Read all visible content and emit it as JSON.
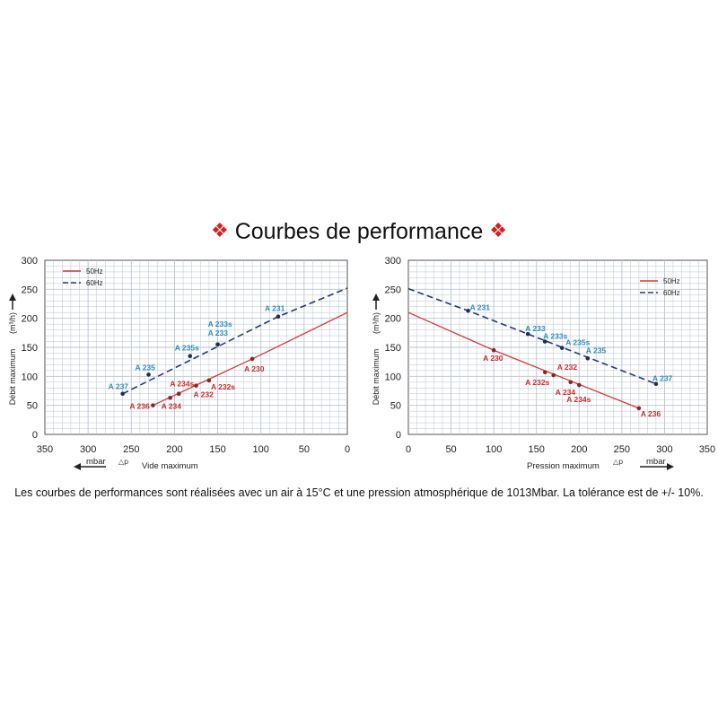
{
  "header": {
    "title": "Courbes de performance",
    "decor": "❖"
  },
  "footnote": "Les courbes de performances sont réalisées avec un air à 15°C et une pression atmosphérique de 1013Mbar. La tolérance est de +/- 10%.",
  "colors": {
    "s50": "#d43a3a",
    "s60": "#263a78",
    "lbl50": "#cc2b2b",
    "lbl60": "#2e8dbf",
    "grid": "#b8c4d4"
  },
  "chart_data": [
    {
      "type": "line",
      "title": "",
      "xlabel": "Vide maximum",
      "xunit": "mbar",
      "xsymbol": "△p",
      "ylabel": "Débit maximum",
      "yunit": "(m³/h)",
      "xlim": [
        350,
        0
      ],
      "ylim": [
        0,
        300
      ],
      "xticks": [
        350,
        300,
        250,
        200,
        150,
        100,
        50,
        0
      ],
      "yticks": [
        0,
        50,
        100,
        150,
        200,
        250,
        300
      ],
      "grid": true,
      "legend": "top-left",
      "series": [
        {
          "name": "50Hz",
          "style": "solid",
          "line": [
            [
              225,
              50
            ],
            [
              110,
              130
            ],
            [
              0,
              210
            ]
          ],
          "points": [
            {
              "label": "A 236",
              "x": 225,
              "y": 50
            },
            {
              "label": "A 234",
              "x": 205,
              "y": 63
            },
            {
              "label": "A 234s",
              "x": 195,
              "y": 70
            },
            {
              "label": "A 232",
              "x": 175,
              "y": 84
            },
            {
              "label": "A 232s",
              "x": 160,
              "y": 93
            },
            {
              "label": "A 230",
              "x": 110,
              "y": 130
            }
          ]
        },
        {
          "name": "60Hz",
          "style": "dashed",
          "line": [
            [
              260,
              70
            ],
            [
              80,
              203
            ],
            [
              0,
              252
            ]
          ],
          "points": [
            {
              "label": "A 237",
              "x": 260,
              "y": 70
            },
            {
              "label": "A 235",
              "x": 230,
              "y": 103
            },
            {
              "label": "A 235s",
              "x": 182,
              "y": 135
            },
            {
              "label": "A 233",
              "x": 150,
              "y": 155
            },
            {
              "label": "A 233s",
              "x": 150,
              "y": 155
            },
            {
              "label": "A 231",
              "x": 80,
              "y": 203
            }
          ]
        }
      ]
    },
    {
      "type": "line",
      "title": "",
      "xlabel": "Pression maximum",
      "xunit": "mbar",
      "xsymbol": "△p",
      "ylabel": "Débit maximum",
      "yunit": "(m³/h)",
      "xlim": [
        0,
        350
      ],
      "ylim": [
        0,
        300
      ],
      "xticks": [
        0,
        50,
        100,
        150,
        200,
        250,
        300,
        350
      ],
      "yticks": [
        0,
        50,
        100,
        150,
        200,
        250,
        300
      ],
      "grid": true,
      "legend": "top-right",
      "series": [
        {
          "name": "50Hz",
          "style": "solid",
          "line": [
            [
              0,
              210
            ],
            [
              100,
              145
            ],
            [
              270,
              45
            ]
          ],
          "points": [
            {
              "label": "A 230",
              "x": 100,
              "y": 145
            },
            {
              "label": "A 232s",
              "x": 160,
              "y": 107
            },
            {
              "label": "A 232",
              "x": 170,
              "y": 102
            },
            {
              "label": "A 234",
              "x": 190,
              "y": 90
            },
            {
              "label": "A 234s",
              "x": 200,
              "y": 85
            },
            {
              "label": "A 236",
              "x": 270,
              "y": 45
            }
          ]
        },
        {
          "name": "60Hz",
          "style": "dashed",
          "line": [
            [
              0,
              251
            ],
            [
              70,
              213
            ],
            [
              290,
              87
            ]
          ],
          "points": [
            {
              "label": "A 231",
              "x": 70,
              "y": 213
            },
            {
              "label": "A 233",
              "x": 140,
              "y": 173
            },
            {
              "label": "A 233s",
              "x": 160,
              "y": 160
            },
            {
              "label": "A 235s",
              "x": 180,
              "y": 149
            },
            {
              "label": "A 235",
              "x": 210,
              "y": 131
            },
            {
              "label": "A 237",
              "x": 290,
              "y": 87
            }
          ]
        }
      ]
    }
  ]
}
